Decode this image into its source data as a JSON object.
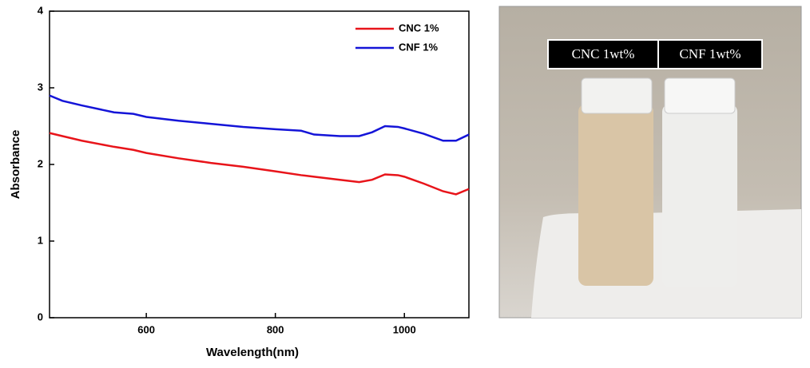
{
  "chart_data": {
    "type": "line",
    "x_label": "Wavelength(nm)",
    "y_label": "Absorbance",
    "x": [
      450,
      470,
      500,
      550,
      580,
      600,
      650,
      700,
      750,
      800,
      840,
      860,
      900,
      930,
      950,
      970,
      990,
      1000,
      1030,
      1060,
      1080,
      1100
    ],
    "series": [
      {
        "name": "CNC 1%",
        "color": "#e8141a",
        "values": [
          2.41,
          2.37,
          2.31,
          2.23,
          2.19,
          2.15,
          2.08,
          2.02,
          1.97,
          1.91,
          1.86,
          1.84,
          1.8,
          1.77,
          1.8,
          1.87,
          1.86,
          1.84,
          1.75,
          1.65,
          1.61,
          1.68
        ]
      },
      {
        "name": "CNF 1%",
        "color": "#1414d8",
        "values": [
          2.9,
          2.83,
          2.77,
          2.68,
          2.66,
          2.62,
          2.57,
          2.53,
          2.49,
          2.46,
          2.44,
          2.39,
          2.37,
          2.37,
          2.42,
          2.5,
          2.49,
          2.47,
          2.4,
          2.31,
          2.31,
          2.39
        ]
      }
    ],
    "xlim": [
      450,
      1100
    ],
    "xticks": [
      600,
      800,
      1000
    ],
    "ylim": [
      0,
      4
    ],
    "yticks": [
      0,
      1,
      2,
      3,
      4
    ],
    "legend": "top-right"
  },
  "photo": {
    "labels": [
      "CNC 1wt%",
      "CNF 1wt%"
    ]
  }
}
